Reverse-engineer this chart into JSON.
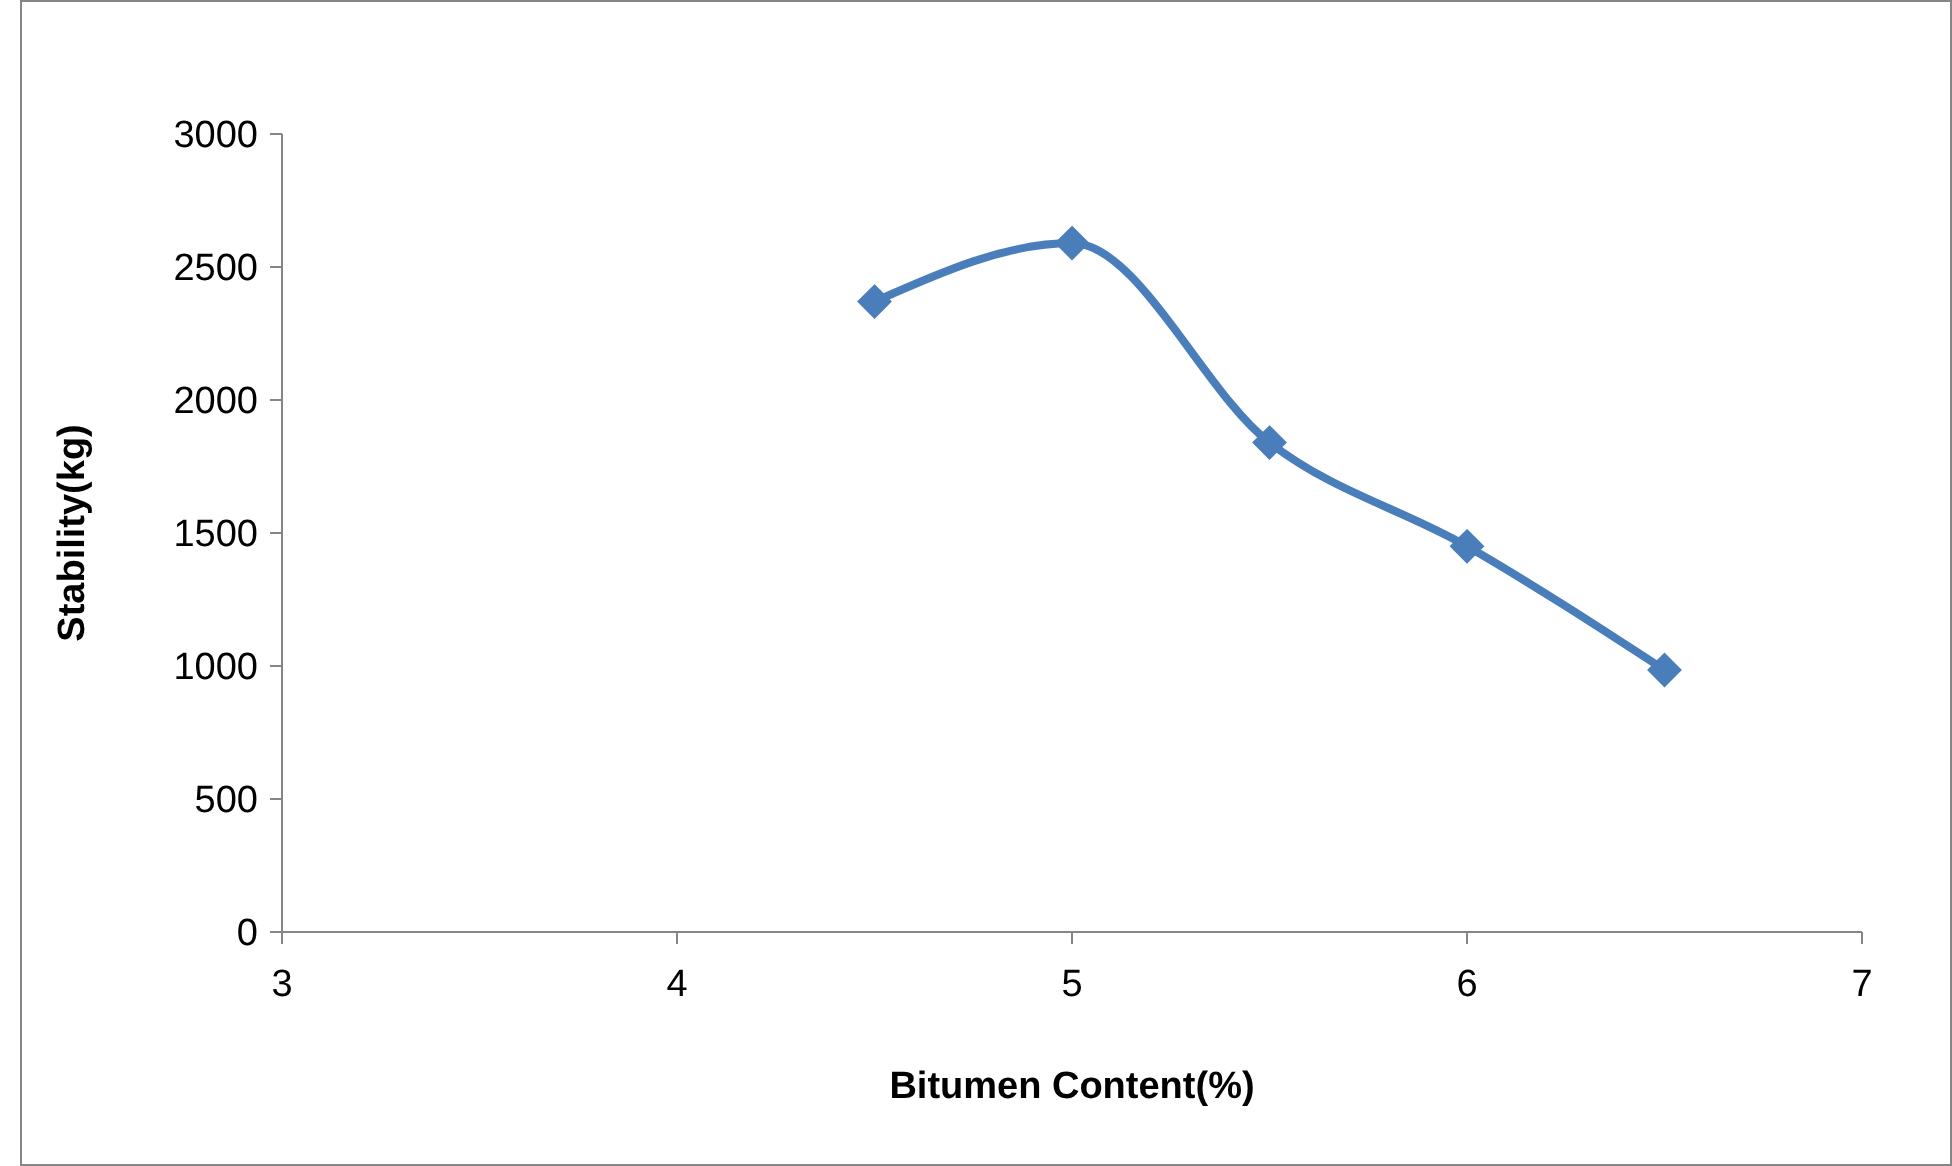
{
  "chart_data": {
    "type": "line",
    "xlabel": "Bitumen Content(%)",
    "ylabel": "Stability(kg)",
    "x": [
      4.5,
      5,
      5.5,
      6,
      6.5
    ],
    "series": [
      {
        "color": "#4a7ebb",
        "values": [
          2370,
          2590,
          1840,
          1450,
          985
        ]
      }
    ],
    "xlim": [
      3,
      7
    ],
    "xticks": [
      3,
      4,
      5,
      6,
      7
    ],
    "ylim": [
      0,
      3000
    ],
    "yticks": [
      0,
      500,
      1000,
      1500,
      2000,
      2500,
      3000
    ],
    "grid": false,
    "marker": "diamond",
    "line_style": "solid"
  }
}
